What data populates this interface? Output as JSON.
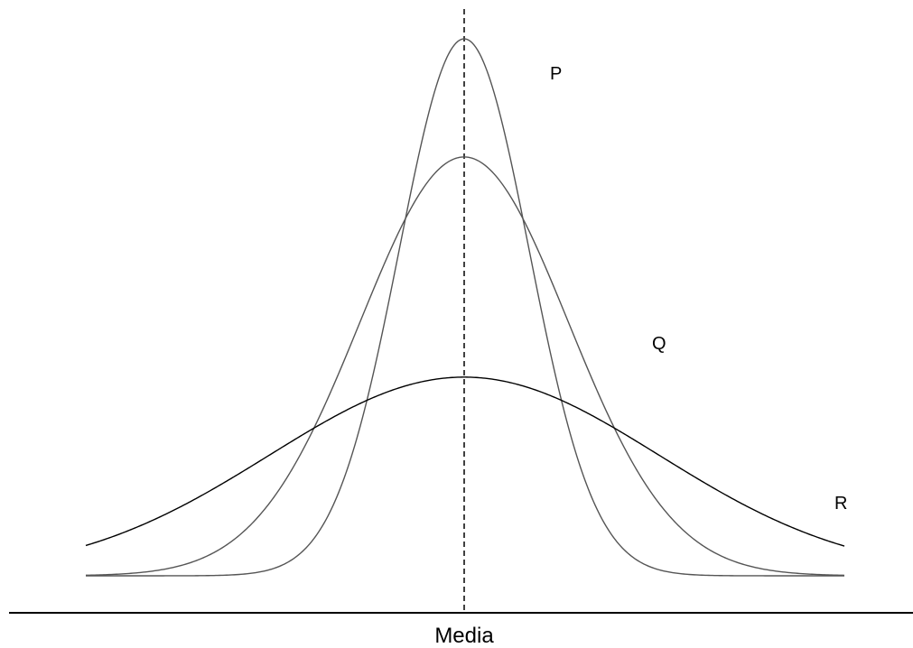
{
  "diagram": {
    "axis_label": "Media",
    "curves": [
      {
        "label": "P",
        "relative_height": 1.0,
        "relative_spread": 0.5,
        "color": "#555555"
      },
      {
        "label": "Q",
        "relative_height": 0.78,
        "relative_spread": 0.8,
        "color": "#555555"
      },
      {
        "label": "R",
        "relative_height": 0.37,
        "relative_spread": 1.5,
        "color": "#000000"
      }
    ],
    "mean_line_style": "dashed",
    "line_color": "#000000"
  }
}
